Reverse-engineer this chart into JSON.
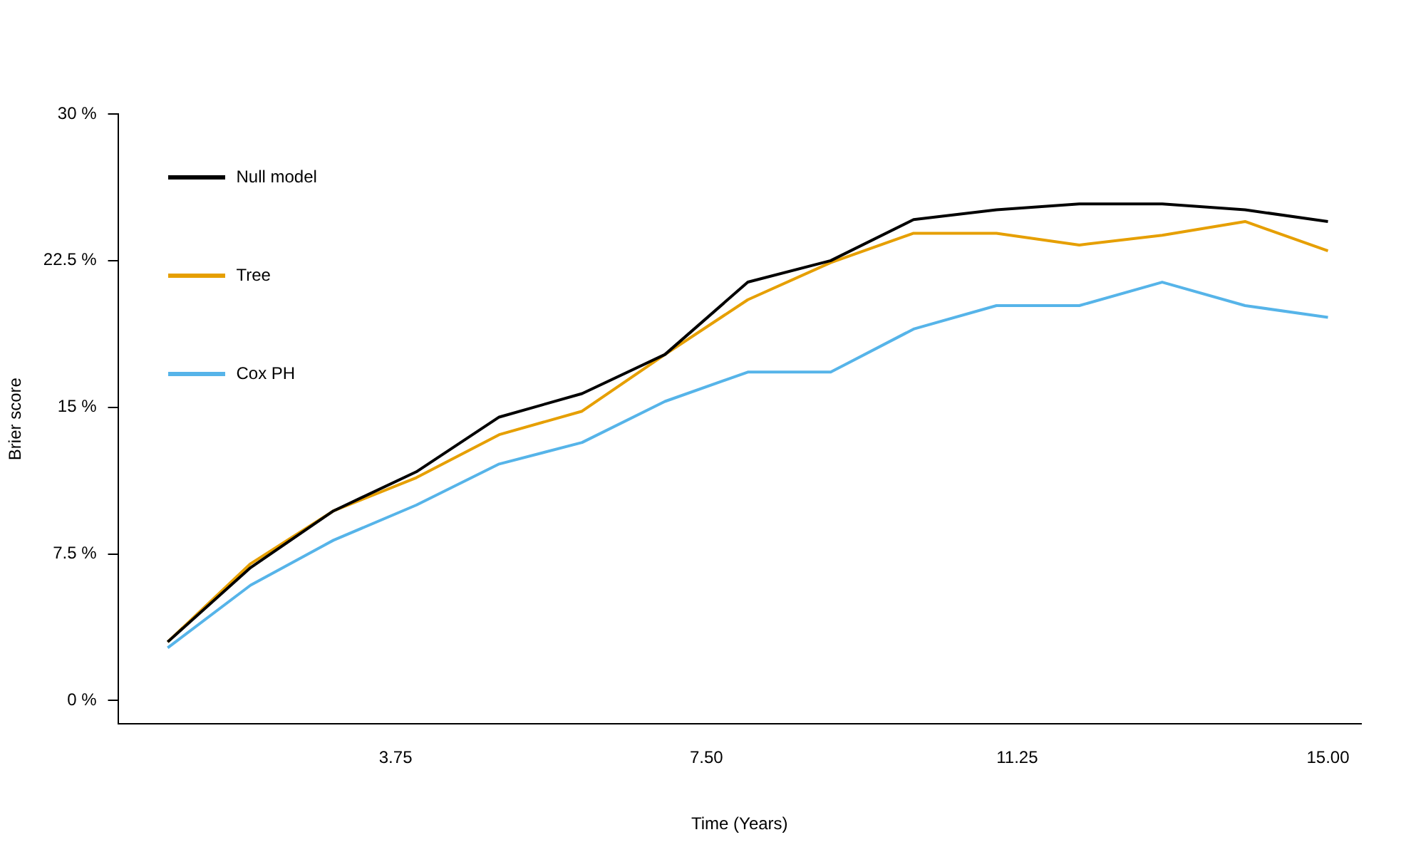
{
  "chart_data": {
    "type": "line",
    "xlabel": "Time (Years)",
    "ylabel": "Brier score",
    "x": [
      1,
      2,
      3,
      4,
      5,
      6,
      7,
      8,
      9,
      10,
      11,
      12,
      13,
      14,
      15
    ],
    "series": [
      {
        "name": "Null model",
        "color": "#000000",
        "values": [
          3.0,
          6.8,
          9.7,
          11.7,
          14.5,
          15.7,
          17.7,
          21.4,
          22.5,
          24.6,
          25.1,
          25.4,
          25.4,
          25.1,
          24.5
        ]
      },
      {
        "name": "Tree",
        "color": "#e69f00",
        "values": [
          3.0,
          7.0,
          9.7,
          11.4,
          13.6,
          14.8,
          17.7,
          20.5,
          22.4,
          23.9,
          23.9,
          23.3,
          23.8,
          24.5,
          23.0
        ]
      },
      {
        "name": "Cox PH",
        "color": "#56b4e9",
        "values": [
          2.7,
          5.9,
          8.2,
          10.0,
          12.1,
          13.2,
          15.3,
          16.8,
          16.8,
          19.0,
          20.2,
          20.2,
          21.4,
          20.2,
          19.6
        ]
      }
    ],
    "xlim": [
      0.4,
      15.4
    ],
    "xticks": [
      {
        "value": 3.75,
        "label": "3.75"
      },
      {
        "value": 7.5,
        "label": "7.50"
      },
      {
        "value": 11.25,
        "label": "11.25"
      },
      {
        "value": 15,
        "label": "15.00"
      }
    ],
    "ylim": [
      -1.2,
      30
    ],
    "yticks": [
      {
        "value": 0,
        "label": "0 %"
      },
      {
        "value": 7.5,
        "label": "7.5 %"
      },
      {
        "value": 15,
        "label": "15 %"
      },
      {
        "value": 22.5,
        "label": "22.5 %"
      },
      {
        "value": 30,
        "label": "30 %"
      }
    ],
    "grid": false,
    "legend": "top left",
    "marker": "none",
    "line_style": "solid"
  }
}
